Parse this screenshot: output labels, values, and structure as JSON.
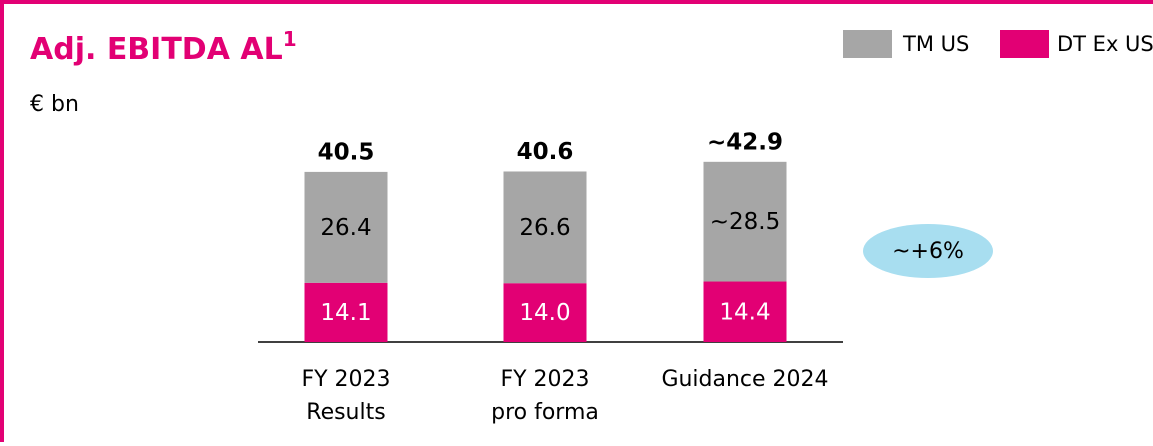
{
  "chart_data": {
    "type": "stacked-bar",
    "title": "Adj. EBITDA AL",
    "title_footnote": "1",
    "subtitle": "€ bn",
    "categories": [
      [
        "FY 2023",
        "Results"
      ],
      [
        "FY 2023",
        "pro forma"
      ],
      [
        "Guidance 2024"
      ]
    ],
    "series": [
      {
        "name": "DT Ex US",
        "color": "#e20074",
        "values": [
          14.1,
          14.0,
          14.4
        ],
        "value_labels": [
          "14.1",
          "14.0",
          "14.4"
        ]
      },
      {
        "name": "TM US",
        "color": "#a6a6a6",
        "values": [
          26.4,
          26.6,
          28.5
        ],
        "value_labels": [
          "26.4",
          "26.6",
          "~28.5"
        ]
      }
    ],
    "totals": [
      40.5,
      40.6,
      42.9
    ],
    "total_labels": [
      "40.5",
      "40.6",
      "~42.9"
    ],
    "annotation": "~+6%"
  }
}
